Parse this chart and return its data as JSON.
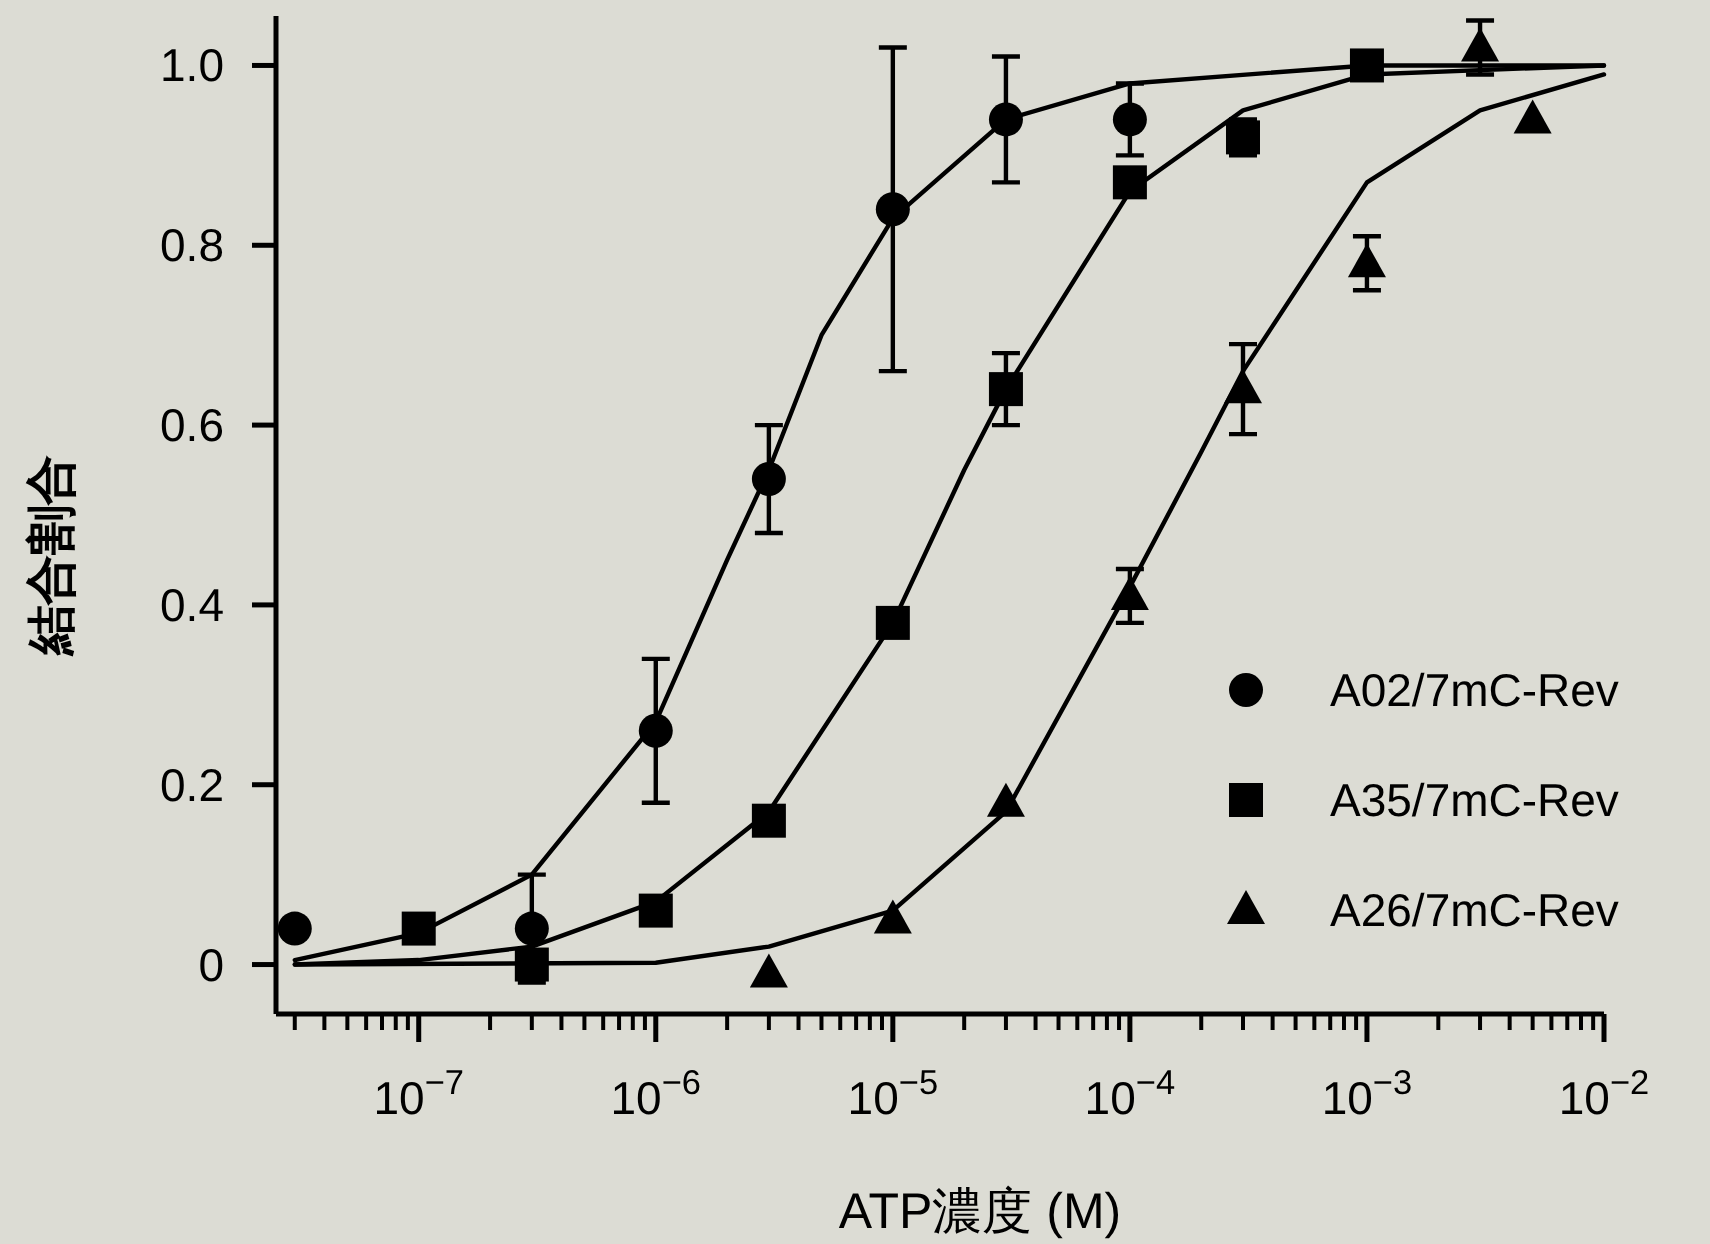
{
  "chart_data": {
    "type": "scatter",
    "xlabel": "ATP濃度 (M)",
    "ylabel": "結合割合",
    "log": "x",
    "xlim": [
      2.5e-08,
      0.01
    ],
    "ylim": [
      -0.055,
      1.055
    ],
    "xticks": [
      {
        "value": 1e-07,
        "label": "10$^{−7}$"
      },
      {
        "value": 1e-06,
        "label": "10$^{−6}$"
      },
      {
        "value": 1e-05,
        "label": "10$^{−5}$"
      },
      {
        "value": 0.0001,
        "label": "10$^{−4}$"
      },
      {
        "value": 0.001,
        "label": "10$^{−3}$"
      },
      {
        "value": 0.01,
        "label": "10$^{−2}$"
      }
    ],
    "yticks": [
      0,
      0.2,
      0.4,
      0.6,
      0.8,
      {
        "value": 1,
        "label": "1.0"
      }
    ],
    "grid": false,
    "legend": "right",
    "series": [
      {
        "name": "A02/7mC-Rev",
        "color": "#000000",
        "marker": "circle",
        "x": [
          3e-08,
          3e-07,
          1e-06,
          3e-06,
          1e-05,
          3e-05,
          0.0001
        ],
        "values": [
          0.04,
          0.04,
          0.26,
          0.54,
          0.84,
          0.94,
          0.94
        ],
        "errors": [
          null,
          0.06,
          0.08,
          0.06,
          0.18,
          0.07,
          0.04
        ]
      },
      {
        "name": "A35/7mC-Rev",
        "color": "#000000",
        "marker": "square",
        "x": [
          1e-07,
          3e-07,
          1e-06,
          3e-06,
          1e-05,
          3e-05,
          0.0001,
          0.0003,
          0.001
        ],
        "values": [
          0.04,
          0.0,
          0.06,
          0.16,
          0.38,
          0.64,
          0.87,
          0.92,
          1.0
        ],
        "errors": [
          null,
          null,
          null,
          null,
          null,
          0.04,
          null,
          0.02,
          null
        ]
      },
      {
        "name": "A26/7mC-Rev",
        "color": "#000000",
        "marker": "triangle",
        "x": [
          3e-06,
          1e-05,
          3e-05,
          0.0001,
          0.0003,
          0.001,
          0.003,
          0.005
        ],
        "values": [
          -0.01,
          0.05,
          0.18,
          0.41,
          0.64,
          0.78,
          1.02,
          0.94
        ],
        "errors": [
          null,
          null,
          null,
          0.03,
          0.05,
          0.03,
          0.03,
          null
        ]
      },
      {
        "type": "line",
        "color": "#000000",
        "x": [
          3e-08,
          1e-07,
          3e-07,
          1e-06,
          2e-06,
          3e-06,
          5e-06,
          1e-05,
          3e-05,
          0.0001,
          0.001,
          0.01
        ],
        "values": [
          0.005,
          0.035,
          0.1,
          0.27,
          0.45,
          0.55,
          0.7,
          0.83,
          0.94,
          0.98,
          1.0,
          1.0
        ]
      },
      {
        "type": "line",
        "color": "#000000",
        "x": [
          3e-08,
          1e-07,
          3e-07,
          1e-06,
          3e-06,
          1e-05,
          2e-05,
          3e-05,
          0.0001,
          0.0003,
          0.001,
          0.01
        ],
        "values": [
          0.0,
          0.005,
          0.02,
          0.07,
          0.17,
          0.38,
          0.55,
          0.64,
          0.86,
          0.95,
          0.99,
          1.0
        ]
      },
      {
        "type": "line",
        "color": "#000000",
        "x": [
          3e-08,
          1e-06,
          3e-06,
          1e-05,
          3e-05,
          0.0001,
          0.0002,
          0.0003,
          0.001,
          0.003,
          0.01
        ],
        "values": [
          0.0,
          0.002,
          0.02,
          0.06,
          0.17,
          0.42,
          0.57,
          0.66,
          0.87,
          0.95,
          0.99
        ]
      }
    ]
  }
}
